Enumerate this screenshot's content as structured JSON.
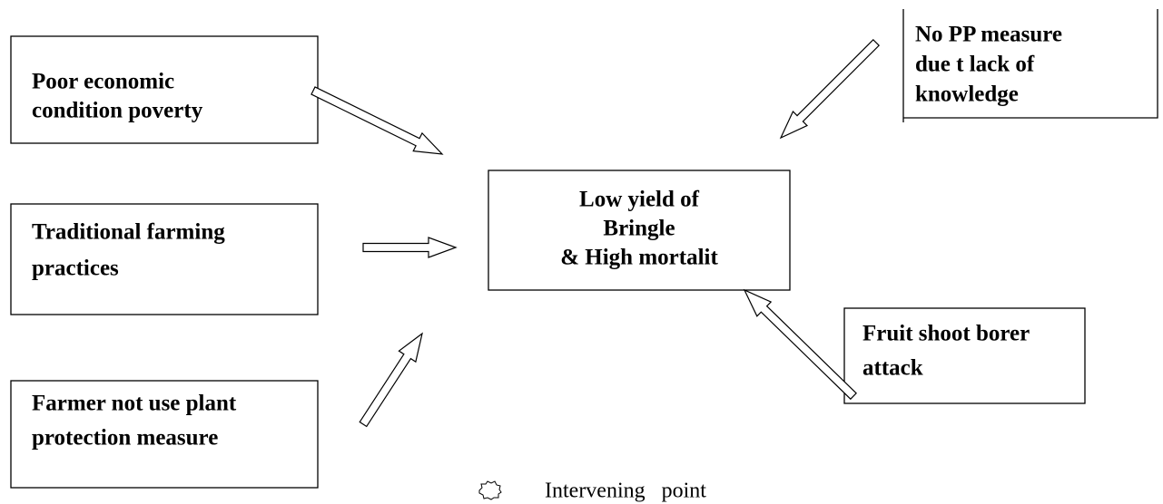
{
  "nodes": [
    {
      "lines": [
        "Poor economic",
        "condition poverty"
      ]
    },
    {
      "lines": [
        "Traditional farming",
        "practices"
      ]
    },
    {
      "lines": [
        "Farmer not use plant",
        "protection measure"
      ]
    },
    {
      "lines": [
        "Low yield of",
        "Bringle",
        "& High mortalit"
      ]
    },
    {
      "lines": [
        "No PP measure",
        "due t lack of",
        "knowledge"
      ]
    },
    {
      "lines": [
        "Fruit shoot borer",
        "attack"
      ]
    }
  ],
  "legend": {
    "label": "Intervening point"
  }
}
